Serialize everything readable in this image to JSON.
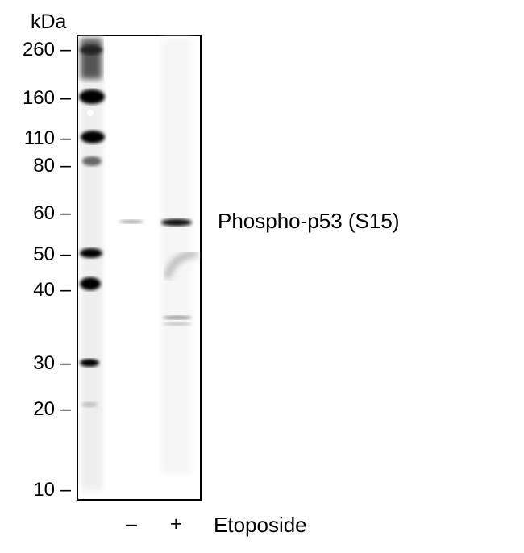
{
  "axis_unit": "kDa",
  "markers": [
    {
      "label": "260 –",
      "kda": 260
    },
    {
      "label": "160 –",
      "kda": 160
    },
    {
      "label": "110 –",
      "kda": 110
    },
    {
      "label": "80 –",
      "kda": 80
    },
    {
      "label": "60 –",
      "kda": 60
    },
    {
      "label": "50 –",
      "kda": 50
    },
    {
      "label": "40 –",
      "kda": 40
    },
    {
      "label": "30 –",
      "kda": 30
    },
    {
      "label": "20 –",
      "kda": 20
    },
    {
      "label": "10 –",
      "kda": 10
    }
  ],
  "band_label": "Phospho-p53 (S15)",
  "lanes": [
    {
      "symbol": "–",
      "band_intensity": "faint"
    },
    {
      "symbol": "+",
      "band_intensity": "strong"
    }
  ],
  "treatment": "Etoposide"
}
